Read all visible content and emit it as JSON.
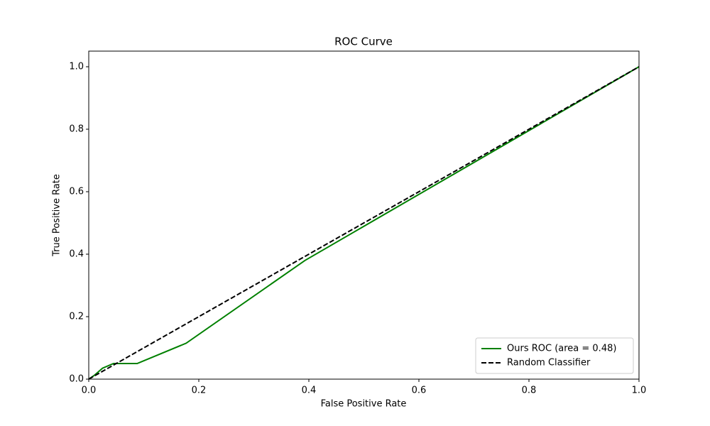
{
  "chart_data": {
    "type": "line",
    "title": "ROC Curve",
    "x_label": "False Positive Rate",
    "y_label": "True Positive Rate",
    "xlim": [
      0,
      1
    ],
    "ylim": [
      0,
      1.05
    ],
    "xticks": [
      {
        "value": 0,
        "label": "0.0"
      },
      0.2,
      0.4,
      0.6,
      0.8,
      {
        "value": 1,
        "label": "1.0"
      }
    ],
    "yticks": [
      {
        "value": 0,
        "label": "0.0"
      },
      0.2,
      0.4,
      0.6,
      0.8,
      {
        "value": 1,
        "label": "1.0"
      }
    ],
    "grid": false,
    "legend": "lower right",
    "series": [
      {
        "name": "Ours ROC (area = 0.48)",
        "color": "#008000",
        "linestyle": "solid",
        "x": [
          0,
          0.01,
          0.025,
          0.045,
          0.088,
          0.177,
          0.393,
          1
        ],
        "values": [
          0,
          0.012,
          0.035,
          0.05,
          0.05,
          0.115,
          0.38,
          1
        ]
      },
      {
        "name": "Random Classifier",
        "color": "#000000",
        "linestyle": "dashed",
        "x": [
          0,
          1
        ],
        "values": [
          0,
          1
        ]
      }
    ]
  }
}
